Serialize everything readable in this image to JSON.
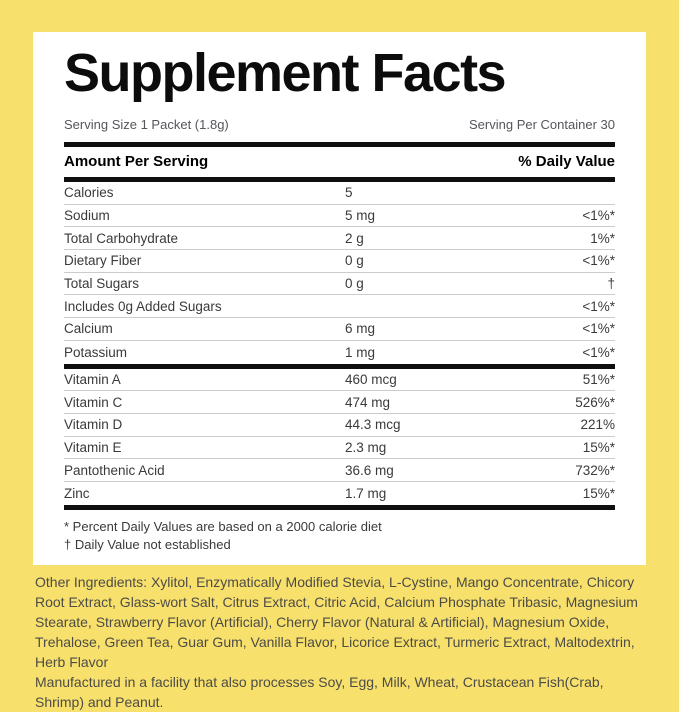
{
  "label": {
    "title": "Supplement Facts",
    "serving_size": "Serving Size 1 Packet (1.8g)",
    "servings_per_container": "Serving Per Container 30",
    "column_headers": {
      "left": "Amount Per Serving",
      "right": "% Daily Value"
    }
  },
  "table": {
    "sections": [
      {
        "rows": [
          {
            "label": "Calories",
            "amount": "5",
            "dv": ""
          },
          {
            "label": "Sodium",
            "amount": "5 mg",
            "dv": "<1%*"
          },
          {
            "label": "Total Carbohydrate",
            "amount": "2 g",
            "dv": "1%*"
          },
          {
            "label": "Dietary Fiber",
            "amount": "0 g",
            "dv": "<1%*"
          },
          {
            "label": "Total Sugars",
            "amount": "0 g",
            "dv": "†"
          },
          {
            "label": "Includes 0g Added Sugars",
            "amount": "",
            "dv": "<1%*"
          },
          {
            "label": "Calcium",
            "amount": "6 mg",
            "dv": "<1%*"
          },
          {
            "label": "Potassium",
            "amount": "1 mg",
            "dv": "<1%*"
          }
        ]
      },
      {
        "rows": [
          {
            "label": "Vitamin A",
            "amount": "460 mcg",
            "dv": "51%*"
          },
          {
            "label": "Vitamin C",
            "amount": "474 mg",
            "dv": "526%*"
          },
          {
            "label": "Vitamin D",
            "amount": "44.3 mcg",
            "dv": "221%"
          },
          {
            "label": "Vitamin E",
            "amount": "2.3 mg",
            "dv": "15%*"
          },
          {
            "label": "Pantothenic Acid",
            "amount": "36.6 mg",
            "dv": "732%*"
          },
          {
            "label": "Zinc",
            "amount": "1.7 mg",
            "dv": "15%*"
          }
        ]
      }
    ]
  },
  "footnotes": [
    "* Percent Daily Values are based on a 2000 calorie diet",
    "† Daily Value not established"
  ],
  "other_ingredients": "Other Ingredients: Xylitol, Enzymatically Modified Stevia, L-Cystine, Mango Concentrate, Chicory Root Extract, Glass-wort Salt, Citrus Extract, Citric Acid, Calcium Phosphate Tribasic, Magnesium Stearate, Strawberry Flavor (Artificial), Cherry Flavor (Natural & Artificial), Magnesium Oxide, Trehalose, Green Tea, Guar Gum, Vanilla Flavor, Licorice Extract, Turmeric Extract, Maltodextrin, Herb Flavor",
  "manufactured_note": "Manufactured in a facility that also processes Soy, Egg, Milk, Wheat, Crustacean Fish(Crab, Shrimp) and Peanut.",
  "colors": {
    "background": "#f8e06c",
    "panel": "#ffffff",
    "bar": "#0f0f0f",
    "row_text": "#3a3a3a",
    "serving_text": "#55565b",
    "ingredients_text": "#4c4c47",
    "separator": "#cccccc"
  }
}
